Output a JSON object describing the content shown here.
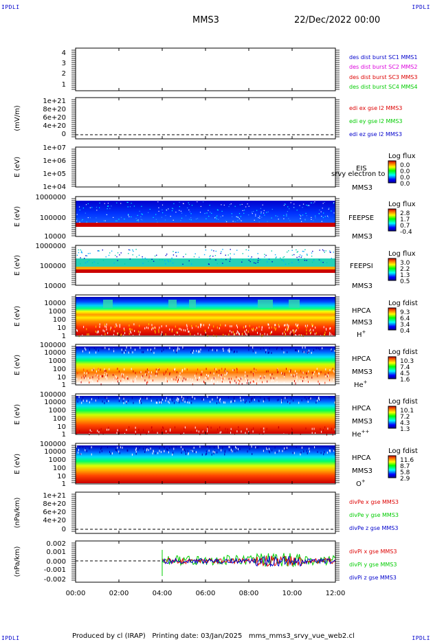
{
  "corners": {
    "tl": "IPDLI",
    "tr": "IPDLI",
    "bl": "IPDLI",
    "br": "IPDLI"
  },
  "header": {
    "spacecraft": "MMS3",
    "datetime": "22/Dec/2022 00:00"
  },
  "footer": {
    "text": "Produced by cl (IRAP)   Printing date: 03/Jan/2025   mms_mms3_srvy_vue_web2.cl"
  },
  "colors": {
    "red": "#dd0000",
    "green": "#00cc00",
    "blue": "#0000cc",
    "magenta": "#dd00dd",
    "frame": "#000000"
  },
  "chart_data": [
    {
      "type": "line",
      "panel": "burst",
      "ylim": [
        0.5,
        4.5
      ],
      "ytick_labels": [
        "1",
        "2",
        "3",
        "4"
      ],
      "series": [
        {
          "name": "des dist burst SC1 MMS1",
          "color": "#0000cc"
        },
        {
          "name": "des dist burst SC2 MMS2",
          "color": "#dd00dd"
        },
        {
          "name": "des dist burst SC3 MMS3",
          "color": "#dd0000"
        },
        {
          "name": "des dist burst SC4 MMS4",
          "color": "#00cc00"
        }
      ]
    },
    {
      "type": "line",
      "panel": "edi",
      "ylabel": "(mV/m)",
      "ytick_labels": [
        "0",
        "2e+20",
        "4e+20",
        "6e+20",
        "8e+20",
        "1e+21"
      ],
      "series": [
        {
          "name": "edi ex gse l2 MMS3",
          "color": "#dd0000"
        },
        {
          "name": "edi ey gse l2 MMS3",
          "color": "#00cc00"
        },
        {
          "name": "edi ez gse l2 MMS3",
          "color": "#0000cc"
        }
      ]
    },
    {
      "type": "heatmap",
      "panel": "eis",
      "ylabel": "E (eV)",
      "ytick_labels": [
        "1e+04",
        "1e+05",
        "1e+06",
        "1e+07"
      ],
      "instrument": "EIS",
      "subtitle": "srvy electron to",
      "spacecraft": "MMS3",
      "colorbar": {
        "title": "Log flux",
        "ticks": [
          "0.0",
          "0.0",
          "0.0",
          "0.0"
        ]
      }
    },
    {
      "type": "heatmap",
      "panel": "feepse",
      "ylabel": "E (eV)",
      "ytick_labels": [
        "10000",
        "100000",
        "1000000"
      ],
      "instrument": "FEEPSE",
      "spacecraft": "MMS3",
      "colorbar": {
        "title": "Log flux",
        "ticks": [
          "2.8",
          "1.7",
          "0.7",
          "-0.4"
        ]
      }
    },
    {
      "type": "heatmap",
      "panel": "feepsi",
      "ylabel": "E (eV)",
      "ytick_labels": [
        "10000",
        "100000",
        "1000000"
      ],
      "instrument": "FEEPSI",
      "spacecraft": "MMS3",
      "colorbar": {
        "title": "Log flux",
        "ticks": [
          "3.0",
          "2.2",
          "1.3",
          "0.5"
        ]
      }
    },
    {
      "type": "heatmap",
      "panel": "hpca_h",
      "ylabel": "E (eV)",
      "ytick_labels": [
        "1",
        "10",
        "100",
        "1000",
        "10000"
      ],
      "instrument": "HPCA",
      "spacecraft": "MMS3",
      "species": "H",
      "charge": "+",
      "colorbar": {
        "title": "Log fdist",
        "ticks": [
          "9.3",
          "6.4",
          "3.4",
          "0.4"
        ]
      }
    },
    {
      "type": "heatmap",
      "panel": "hpca_he1",
      "ylabel": "E (eV)",
      "ytick_labels": [
        "1",
        "10",
        "100",
        "1000",
        "10000",
        "100000"
      ],
      "instrument": "HPCA",
      "spacecraft": "MMS3",
      "species": "He",
      "charge": "+",
      "colorbar": {
        "title": "Log fdist",
        "ticks": [
          "10.3",
          "7.4",
          "4.5",
          "1.6"
        ]
      }
    },
    {
      "type": "heatmap",
      "panel": "hpca_he2",
      "ylabel": "E (eV)",
      "ytick_labels": [
        "1",
        "10",
        "100",
        "1000",
        "10000",
        "100000"
      ],
      "instrument": "HPCA",
      "spacecraft": "MMS3",
      "species": "He",
      "charge": "++",
      "colorbar": {
        "title": "Log fdist",
        "ticks": [
          "10.1",
          "7.2",
          "4.3",
          "1.3"
        ]
      }
    },
    {
      "type": "heatmap",
      "panel": "hpca_o",
      "ylabel": "E (eV)",
      "ytick_labels": [
        "1",
        "10",
        "100",
        "1000",
        "10000",
        "100000"
      ],
      "instrument": "HPCA",
      "spacecraft": "MMS3",
      "species": "O",
      "charge": "+",
      "colorbar": {
        "title": "Log fdist",
        "ticks": [
          "11.6",
          "8.7",
          "5.8",
          "2.9"
        ]
      }
    },
    {
      "type": "line",
      "panel": "divpe",
      "ylabel": "(nPa/km)",
      "ytick_labels": [
        "0",
        "2e+20",
        "4e+20",
        "6e+20",
        "8e+20",
        "1e+21"
      ],
      "series": [
        {
          "name": "divPe x gse MMS3",
          "color": "#dd0000"
        },
        {
          "name": "divPe y gse MMS3",
          "color": "#00cc00"
        },
        {
          "name": "divPe z gse MMS3",
          "color": "#0000cc"
        }
      ]
    },
    {
      "type": "line",
      "panel": "divpi",
      "ylabel": "(nPa/km)",
      "ylim": [
        -0.0025,
        0.0025
      ],
      "ytick_labels": [
        "-0.002",
        "-0.001",
        "0.000",
        "0.001",
        "0.002"
      ],
      "data_start_hour": 4.0,
      "series": [
        {
          "name": "divPi x gse MMS3",
          "color": "#dd0000"
        },
        {
          "name": "divPi y gse MMS3",
          "color": "#00cc00"
        },
        {
          "name": "divPi z gse MMS3",
          "color": "#0000cc"
        }
      ]
    }
  ],
  "time_axis": {
    "ticks": [
      "00:00",
      "02:00",
      "04:00",
      "06:00",
      "08:00",
      "10:00",
      "12:00"
    ]
  }
}
